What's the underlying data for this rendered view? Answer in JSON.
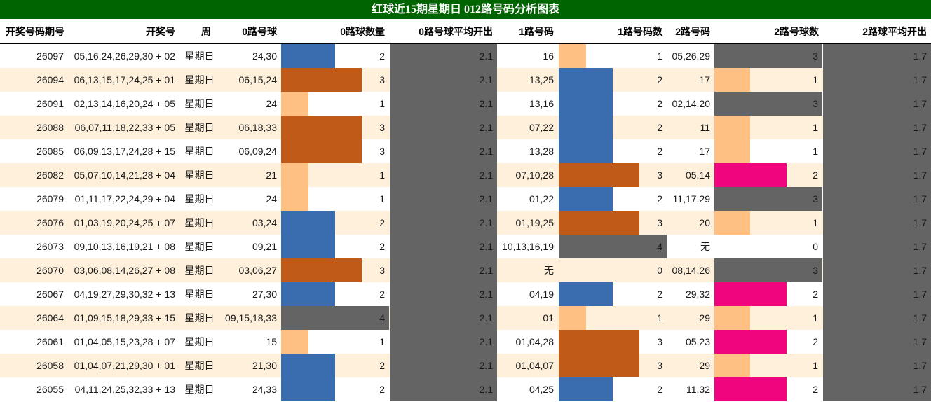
{
  "title": "红球近15期星期日 012路号码分析图表",
  "headers": [
    "开奖号码期号",
    "开奖号",
    "周",
    "0路号球",
    "0路球数量",
    "0路号球平均开出",
    "1路号码",
    "1路号码数",
    "2路号码",
    "2路号球数",
    "2路球平均开出"
  ],
  "colors": {
    "title_bg": "#006400",
    "row_alt": "#fff0dc",
    "count_1": "#ffc083",
    "count_2": "#3a6db0",
    "count_3": "#c05a18",
    "count_4": "#646464",
    "count_0": "#ffffff",
    "avg_bg": "#646464",
    "pink": "#f0057f"
  },
  "chart_data": {
    "type": "table",
    "title": "红球近15期星期日 012路号码分析图表",
    "avg0": "2.1",
    "avg2": "1.7",
    "rows": [
      {
        "issue": "26097",
        "numbers": "05,16,24,26,29,30 + 02",
        "week": "星期日",
        "r0": "24,30",
        "c0": 2,
        "r1": "16",
        "c1": 1,
        "r2": "05,26,29",
        "c2": 3
      },
      {
        "issue": "26094",
        "numbers": "06,13,15,17,24,25 + 01",
        "week": "星期日",
        "r0": "06,15,24",
        "c0": 3,
        "r1": "13,25",
        "c1": 2,
        "r2": "17",
        "c2": 1
      },
      {
        "issue": "26091",
        "numbers": "02,13,14,16,20,24 + 05",
        "week": "星期日",
        "r0": "24",
        "c0": 1,
        "r1": "13,16",
        "c1": 2,
        "r2": "02,14,20",
        "c2": 3
      },
      {
        "issue": "26088",
        "numbers": "06,07,11,18,22,33 + 05",
        "week": "星期日",
        "r0": "06,18,33",
        "c0": 3,
        "r1": "07,22",
        "c1": 2,
        "r2": "11",
        "c2": 1
      },
      {
        "issue": "26085",
        "numbers": "06,09,13,17,24,28 + 15",
        "week": "星期日",
        "r0": "06,09,24",
        "c0": 3,
        "r1": "13,28",
        "c1": 2,
        "r2": "17",
        "c2": 1
      },
      {
        "issue": "26082",
        "numbers": "05,07,10,14,21,28 + 04",
        "week": "星期日",
        "r0": "21",
        "c0": 1,
        "r1": "07,10,28",
        "c1": 3,
        "r2": "05,14",
        "c2": 2
      },
      {
        "issue": "26079",
        "numbers": "01,11,17,22,24,29 + 04",
        "week": "星期日",
        "r0": "24",
        "c0": 1,
        "r1": "01,22",
        "c1": 2,
        "r2": "11,17,29",
        "c2": 3
      },
      {
        "issue": "26076",
        "numbers": "01,03,19,20,24,25 + 07",
        "week": "星期日",
        "r0": "03,24",
        "c0": 2,
        "r1": "01,19,25",
        "c1": 3,
        "r2": "20",
        "c2": 1
      },
      {
        "issue": "26073",
        "numbers": "09,10,13,16,19,21 + 08",
        "week": "星期日",
        "r0": "09,21",
        "c0": 2,
        "r1": "10,13,16,19",
        "c1": 4,
        "r2": "无",
        "c2": 0
      },
      {
        "issue": "26070",
        "numbers": "03,06,08,14,26,27 + 08",
        "week": "星期日",
        "r0": "03,06,27",
        "c0": 3,
        "r1": "无",
        "c1": 0,
        "r2": "08,14,26",
        "c2": 3
      },
      {
        "issue": "26067",
        "numbers": "04,19,27,29,30,32 + 13",
        "week": "星期日",
        "r0": "27,30",
        "c0": 2,
        "r1": "04,19",
        "c1": 2,
        "r2": "29,32",
        "c2": 2
      },
      {
        "issue": "26064",
        "numbers": "01,09,15,18,29,33 + 15",
        "week": "星期日",
        "r0": "09,15,18,33",
        "c0": 4,
        "r1": "01",
        "c1": 1,
        "r2": "29",
        "c2": 1
      },
      {
        "issue": "26061",
        "numbers": "01,04,05,15,23,28 + 07",
        "week": "星期日",
        "r0": "15",
        "c0": 1,
        "r1": "01,04,28",
        "c1": 3,
        "r2": "05,23",
        "c2": 2
      },
      {
        "issue": "26058",
        "numbers": "01,04,07,21,29,30 + 01",
        "week": "星期日",
        "r0": "21,30",
        "c0": 2,
        "r1": "01,04,07",
        "c1": 3,
        "r2": "29",
        "c2": 1
      },
      {
        "issue": "26055",
        "numbers": "04,11,24,25,32,33 + 13",
        "week": "星期日",
        "r0": "24,33",
        "c0": 2,
        "r1": "04,25",
        "c1": 2,
        "r2": "11,32",
        "c2": 2
      }
    ]
  }
}
